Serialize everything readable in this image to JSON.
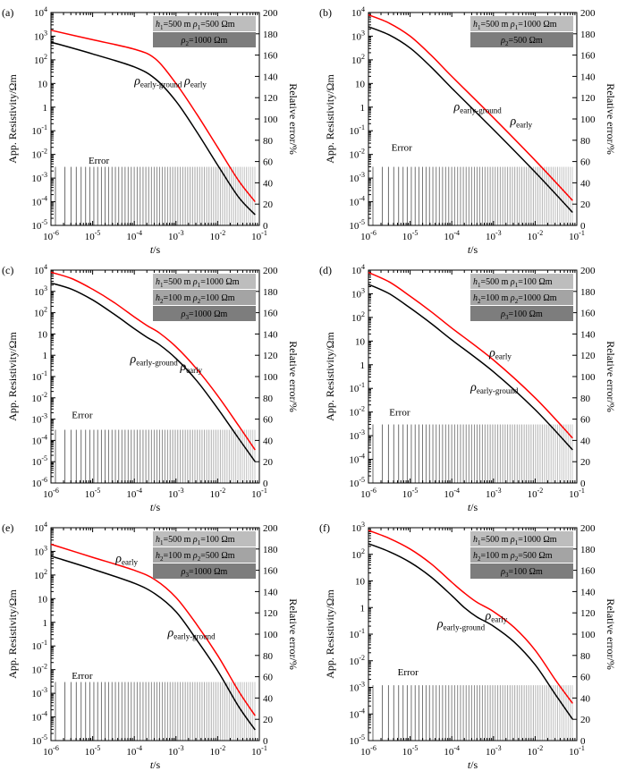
{
  "chart_data": [
    {
      "type": "line",
      "panel_label": "(a)",
      "xlabel": "t/s",
      "ylabel": "App. Resistivity/Ωm",
      "y2label": "Relative error/%",
      "xlim_exp": [
        -6,
        -1
      ],
      "ylim_exp": [
        -5,
        4
      ],
      "y2lim": [
        0,
        200
      ],
      "y2ticks": [
        0,
        20,
        40,
        60,
        80,
        100,
        120,
        140,
        160,
        180,
        200
      ],
      "legend_rows": [
        {
          "parts": [
            {
              "t": "h",
              "it": true
            },
            {
              "t": "1",
              "sub": true
            },
            {
              "t": "=500 m  "
            },
            {
              "t": "ρ",
              "it": true
            },
            {
              "t": "1",
              "sub": true
            },
            {
              "t": "=500 Ωm"
            }
          ]
        },
        {
          "parts": [
            {
              "t": "ρ",
              "it": true
            },
            {
              "t": "2",
              "sub": true
            },
            {
              "t": "=1000 Ωm"
            }
          ]
        }
      ],
      "series": [
        {
          "name": "early",
          "color": "#ff0000",
          "x_exp": [
            -6,
            -5,
            -4,
            -3.5,
            -3,
            -2.5,
            -2,
            -1.5,
            -1.1
          ],
          "y_exp": [
            3.25,
            2.85,
            2.45,
            2.05,
            1.0,
            -0.3,
            -1.7,
            -3.1,
            -4.0
          ]
        },
        {
          "name": "early-ground",
          "color": "#000000",
          "x_exp": [
            -6,
            -5,
            -4,
            -3.5,
            -3,
            -2.5,
            -2,
            -1.5,
            -1.1
          ],
          "y_exp": [
            2.75,
            2.25,
            1.7,
            1.2,
            0.25,
            -1.05,
            -2.45,
            -3.8,
            -4.55
          ]
        }
      ],
      "annotations": [
        {
          "type": "rho",
          "sub": "early-ground",
          "x_exp": -4.0,
          "y_exp": 0.95
        },
        {
          "type": "rho",
          "sub": "early",
          "x_exp": -2.8,
          "y_exp": 0.95
        },
        {
          "type": "text",
          "text": "Error",
          "x_exp": -5.1,
          "y_exp": -2.4
        }
      ],
      "error_percent": 55
    },
    {
      "type": "line",
      "panel_label": "(b)",
      "xlabel": "t/s",
      "ylabel": "App. Resistivity/Ωm",
      "y2label": "Relative error/%",
      "xlim_exp": [
        -6,
        -1
      ],
      "ylim_exp": [
        -5,
        4
      ],
      "y2lim": [
        0,
        200
      ],
      "y2ticks": [
        0,
        20,
        40,
        60,
        80,
        100,
        120,
        140,
        160,
        180,
        200
      ],
      "legend_rows": [
        {
          "parts": [
            {
              "t": "h",
              "it": true
            },
            {
              "t": "1",
              "sub": true
            },
            {
              "t": "=500 m  "
            },
            {
              "t": "ρ",
              "it": true
            },
            {
              "t": "1",
              "sub": true
            },
            {
              "t": "=1000 Ωm"
            }
          ]
        },
        {
          "parts": [
            {
              "t": "ρ",
              "it": true
            },
            {
              "t": "2",
              "sub": true
            },
            {
              "t": "=500 Ωm"
            }
          ]
        }
      ],
      "series": [
        {
          "name": "early",
          "color": "#ff0000",
          "x_exp": [
            -6,
            -5.5,
            -5,
            -4.5,
            -4,
            -3,
            -2,
            -1.1
          ],
          "y_exp": [
            3.9,
            3.55,
            3.0,
            2.2,
            1.3,
            -0.45,
            -2.25,
            -3.95
          ]
        },
        {
          "name": "early-ground",
          "color": "#000000",
          "x_exp": [
            -6,
            -5.5,
            -5,
            -4.5,
            -4,
            -3,
            -2,
            -1.1
          ],
          "y_exp": [
            3.4,
            3.05,
            2.5,
            1.7,
            0.8,
            -0.95,
            -2.75,
            -4.45
          ]
        }
      ],
      "annotations": [
        {
          "type": "rho",
          "sub": "early-ground",
          "x_exp": -3.95,
          "y_exp": -0.15
        },
        {
          "type": "rho",
          "sub": "early",
          "x_exp": -2.6,
          "y_exp": -0.75
        },
        {
          "type": "text",
          "text": "Error",
          "x_exp": -5.45,
          "y_exp": -1.85
        }
      ],
      "error_percent": 55
    },
    {
      "type": "line",
      "panel_label": "(c)",
      "xlabel": "t/s",
      "ylabel": "App. Resistivity/Ωm",
      "y2label": "Relative error/%",
      "xlim_exp": [
        -6,
        -1
      ],
      "ylim_exp": [
        -6,
        4
      ],
      "y2lim": [
        0,
        200
      ],
      "y2ticks": [
        0,
        20,
        40,
        60,
        80,
        100,
        120,
        140,
        160,
        180,
        200
      ],
      "legend_rows": [
        {
          "parts": [
            {
              "t": "h",
              "it": true
            },
            {
              "t": "1",
              "sub": true
            },
            {
              "t": "=500 m  "
            },
            {
              "t": "ρ",
              "it": true
            },
            {
              "t": "1",
              "sub": true
            },
            {
              "t": "=1000 Ωm"
            }
          ]
        },
        {
          "parts": [
            {
              "t": "h",
              "it": true
            },
            {
              "t": "2",
              "sub": true
            },
            {
              "t": "=100 m  "
            },
            {
              "t": "ρ",
              "it": true
            },
            {
              "t": "2",
              "sub": true
            },
            {
              "t": "=100 Ωm"
            }
          ]
        },
        {
          "parts": [
            {
              "t": "ρ",
              "it": true
            },
            {
              "t": "3",
              "sub": true
            },
            {
              "t": "=1000 Ωm"
            }
          ]
        }
      ],
      "series": [
        {
          "name": "early",
          "color": "#ff0000",
          "x_exp": [
            -6,
            -5.5,
            -5,
            -4.5,
            -4,
            -3.7,
            -3.4,
            -3,
            -2.5,
            -2,
            -1.5,
            -1.1
          ],
          "y_exp": [
            3.9,
            3.6,
            3.1,
            2.5,
            1.8,
            1.4,
            1.05,
            0.4,
            -0.65,
            -1.9,
            -3.3,
            -4.45
          ]
        },
        {
          "name": "early-ground",
          "color": "#000000",
          "x_exp": [
            -6,
            -5.5,
            -5,
            -4.5,
            -4,
            -3.7,
            -3.4,
            -3,
            -2.5,
            -2,
            -1.5,
            -1.1
          ],
          "y_exp": [
            3.4,
            3.1,
            2.6,
            1.95,
            1.25,
            0.85,
            0.5,
            -0.15,
            -1.2,
            -2.5,
            -3.9,
            -5.0
          ]
        }
      ],
      "annotations": [
        {
          "type": "rho",
          "sub": "early-ground",
          "x_exp": -4.1,
          "y_exp": -0.35
        },
        {
          "type": "rho",
          "sub": "early",
          "x_exp": -2.9,
          "y_exp": -0.7
        },
        {
          "type": "text",
          "text": "Error",
          "x_exp": -5.5,
          "y_exp": -2.95
        }
      ],
      "error_percent": 50
    },
    {
      "type": "line",
      "panel_label": "(d)",
      "xlabel": "t/s",
      "ylabel": "App. Resistivity/Ωm",
      "y2label": "Relative error/%",
      "xlim_exp": [
        -6,
        -1
      ],
      "ylim_exp": [
        -5,
        4
      ],
      "y2lim": [
        0,
        200
      ],
      "y2ticks": [
        0,
        20,
        40,
        60,
        80,
        100,
        120,
        140,
        160,
        180,
        200
      ],
      "legend_rows": [
        {
          "parts": [
            {
              "t": "h",
              "it": true
            },
            {
              "t": "1",
              "sub": true
            },
            {
              "t": "=500 m  "
            },
            {
              "t": "ρ",
              "it": true
            },
            {
              "t": "1",
              "sub": true
            },
            {
              "t": "=100 Ωm"
            }
          ]
        },
        {
          "parts": [
            {
              "t": "h",
              "it": true
            },
            {
              "t": "2",
              "sub": true
            },
            {
              "t": "=100 m  "
            },
            {
              "t": "ρ",
              "it": true
            },
            {
              "t": "2",
              "sub": true
            },
            {
              "t": "=1000 Ωm"
            }
          ]
        },
        {
          "parts": [
            {
              "t": "ρ",
              "it": true
            },
            {
              "t": "3",
              "sub": true
            },
            {
              "t": "=100 Ωm"
            }
          ]
        }
      ],
      "series": [
        {
          "name": "early",
          "color": "#ff0000",
          "x_exp": [
            -6,
            -5.5,
            -5,
            -4.5,
            -4,
            -3,
            -2,
            -1.1
          ],
          "y_exp": [
            3.9,
            3.5,
            2.9,
            2.25,
            1.55,
            0.2,
            -1.4,
            -3.1
          ]
        },
        {
          "name": "early-ground",
          "color": "#000000",
          "x_exp": [
            -6,
            -5.5,
            -5,
            -4.5,
            -4,
            -3,
            -2,
            -1.1
          ],
          "y_exp": [
            3.4,
            3.0,
            2.4,
            1.75,
            1.05,
            -0.3,
            -1.9,
            -3.6
          ]
        }
      ],
      "annotations": [
        {
          "type": "rho",
          "sub": "early",
          "x_exp": -3.1,
          "y_exp": 0.35
        },
        {
          "type": "rho",
          "sub": "early-ground",
          "x_exp": -3.55,
          "y_exp": -1.1
        },
        {
          "type": "text",
          "text": "Error",
          "x_exp": -5.5,
          "y_exp": -2.15
        }
      ],
      "error_percent": 55
    },
    {
      "type": "line",
      "panel_label": "(e)",
      "xlabel": "t/s",
      "ylabel": "App. Resistivity/Ωm",
      "y2label": "Relative error/%",
      "xlim_exp": [
        -6,
        -1
      ],
      "ylim_exp": [
        -5,
        4
      ],
      "y2lim": [
        0,
        200
      ],
      "y2ticks": [
        0,
        20,
        40,
        60,
        80,
        100,
        120,
        140,
        160,
        180,
        200
      ],
      "legend_rows": [
        {
          "parts": [
            {
              "t": "h",
              "it": true
            },
            {
              "t": "1",
              "sub": true
            },
            {
              "t": "=500 m  "
            },
            {
              "t": "ρ",
              "it": true
            },
            {
              "t": "1",
              "sub": true
            },
            {
              "t": "=100 Ωm"
            }
          ]
        },
        {
          "parts": [
            {
              "t": "h",
              "it": true
            },
            {
              "t": "2",
              "sub": true
            },
            {
              "t": "=100 m  "
            },
            {
              "t": "ρ",
              "it": true
            },
            {
              "t": "2",
              "sub": true
            },
            {
              "t": "=500 Ωm"
            }
          ]
        },
        {
          "parts": [
            {
              "t": "ρ",
              "it": true
            },
            {
              "t": "3",
              "sub": true
            },
            {
              "t": "=1000 Ωm"
            }
          ]
        }
      ],
      "series": [
        {
          "name": "early",
          "color": "#ff0000",
          "x_exp": [
            -6,
            -5,
            -4,
            -3.5,
            -3,
            -2.5,
            -2,
            -1.5,
            -1.1
          ],
          "y_exp": [
            3.3,
            2.75,
            2.2,
            1.8,
            1.05,
            -0.1,
            -1.4,
            -2.9,
            -3.95
          ]
        },
        {
          "name": "early-ground",
          "color": "#000000",
          "x_exp": [
            -6,
            -5,
            -4,
            -3.5,
            -3,
            -2.5,
            -2,
            -1.5,
            -1.1
          ],
          "y_exp": [
            2.8,
            2.25,
            1.65,
            1.2,
            0.45,
            -0.75,
            -2.05,
            -3.55,
            -4.55
          ]
        }
      ],
      "annotations": [
        {
          "type": "rho",
          "sub": "early",
          "x_exp": -4.45,
          "y_exp": 2.55
        },
        {
          "type": "rho",
          "sub": "early-ground",
          "x_exp": -3.2,
          "y_exp": -0.6
        },
        {
          "type": "text",
          "text": "Error",
          "x_exp": -5.5,
          "y_exp": -2.4
        }
      ],
      "error_percent": 55
    },
    {
      "type": "line",
      "panel_label": "(f)",
      "xlabel": "t/s",
      "ylabel": "App. Resistivity/Ωm",
      "y2label": "Relative error/%",
      "xlim_exp": [
        -6,
        -1
      ],
      "ylim_exp": [
        -5,
        3
      ],
      "y2lim": [
        0,
        200
      ],
      "y2ticks": [
        0,
        20,
        40,
        60,
        80,
        100,
        120,
        140,
        160,
        180,
        200
      ],
      "legend_rows": [
        {
          "parts": [
            {
              "t": "h",
              "it": true
            },
            {
              "t": "1",
              "sub": true
            },
            {
              "t": "=500 m  "
            },
            {
              "t": "ρ",
              "it": true
            },
            {
              "t": "1",
              "sub": true
            },
            {
              "t": "=1000 Ωm"
            }
          ]
        },
        {
          "parts": [
            {
              "t": "h",
              "it": true
            },
            {
              "t": "2",
              "sub": true
            },
            {
              "t": "=100 m  "
            },
            {
              "t": "ρ",
              "it": true
            },
            {
              "t": "2",
              "sub": true
            },
            {
              "t": "=500 Ωm"
            }
          ]
        },
        {
          "parts": [
            {
              "t": "ρ",
              "it": true
            },
            {
              "t": "3",
              "sub": true
            },
            {
              "t": "=100 Ωm"
            }
          ]
        }
      ],
      "series": [
        {
          "name": "early",
          "color": "#ff0000",
          "x_exp": [
            -6,
            -5.5,
            -5,
            -4.5,
            -4,
            -3.7,
            -3.4,
            -3,
            -2.5,
            -2,
            -1.5,
            -1.1
          ],
          "y_exp": [
            2.9,
            2.6,
            2.2,
            1.65,
            0.95,
            0.55,
            0.2,
            -0.15,
            -0.75,
            -1.6,
            -2.75,
            -3.6
          ]
        },
        {
          "name": "early-ground",
          "color": "#000000",
          "x_exp": [
            -6,
            -5.5,
            -5,
            -4.5,
            -4,
            -3.7,
            -3.4,
            -3,
            -2.5,
            -2,
            -1.5,
            -1.1
          ],
          "y_exp": [
            2.4,
            2.1,
            1.7,
            1.15,
            0.45,
            0.0,
            -0.35,
            -0.7,
            -1.3,
            -2.15,
            -3.3,
            -4.2
          ]
        }
      ],
      "annotations": [
        {
          "type": "rho",
          "sub": "early-ground",
          "x_exp": -4.35,
          "y_exp": -0.75
        },
        {
          "type": "rho",
          "sub": "early",
          "x_exp": -3.2,
          "y_exp": -0.45
        },
        {
          "type": "text",
          "text": "Error",
          "x_exp": -5.3,
          "y_exp": -2.55
        }
      ],
      "error_percent": 52
    }
  ]
}
